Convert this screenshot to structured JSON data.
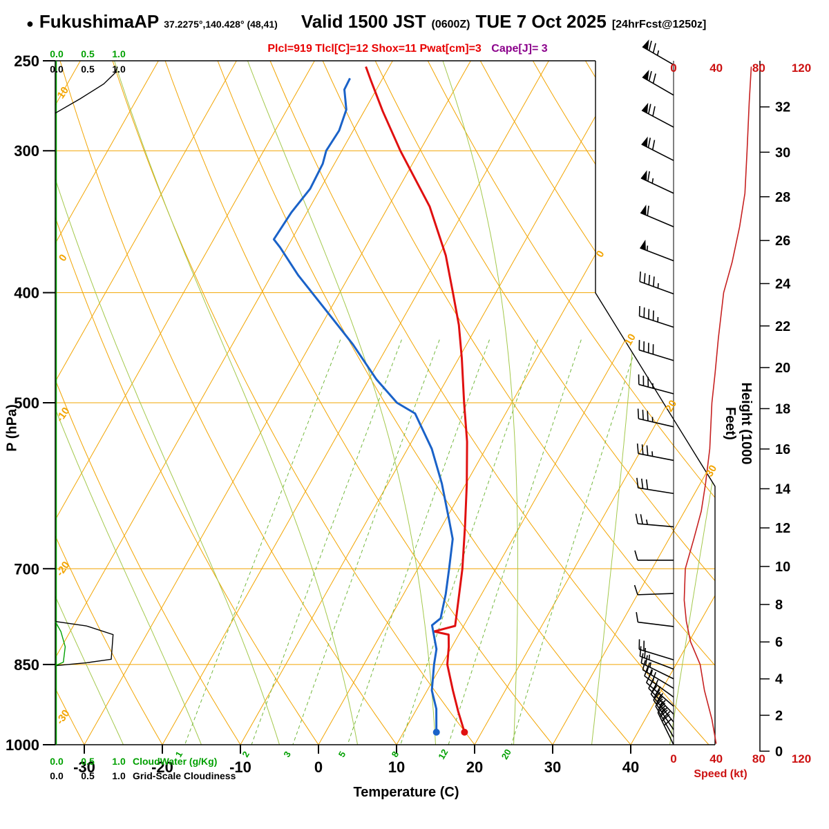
{
  "title": {
    "bullet": "●",
    "station": "FukushimaAP",
    "coords": "37.2275°,140.428° (48,41)",
    "valid": "Valid 1500 JST",
    "valid_z": "(0600Z)",
    "date": "TUE 7 Oct 2025",
    "fcst": "[24hrFcst@1250z]"
  },
  "indices": {
    "red": "Plcl=919 Tlcl[C]=12 Shox=11 Pwat[cm]=3",
    "purple": "Cape[J]= 3"
  },
  "axis": {
    "pressure": {
      "label": "P (hPa)",
      "ticks": [
        250,
        300,
        400,
        500,
        700,
        850,
        1000
      ]
    },
    "temperature": {
      "label": "Temperature (C)",
      "ticks": [
        -30,
        -20,
        -10,
        0,
        10,
        20,
        30,
        40
      ]
    },
    "height": {
      "label": "Height (1000 Feet)",
      "ticks": [
        0,
        2,
        4,
        6,
        8,
        10,
        12,
        14,
        16,
        18,
        20,
        22,
        24,
        26,
        28,
        30,
        32
      ]
    },
    "speed": {
      "label": "Speed (kt)",
      "ticks": [
        0,
        40,
        80,
        120
      ]
    }
  },
  "legend": {
    "scale_values": [
      "0.0",
      "0.5",
      "1.0"
    ],
    "cloudwater_label": "CloudWater (g/Kg)",
    "cloudiness_label": "Grid-Scale Cloudiness"
  },
  "chart_data": {
    "type": "skewt_log_p_sounding",
    "pressure_range_hpa": [
      250,
      1050
    ],
    "isotherms_c": {
      "min": -80,
      "max": 40,
      "step": 10
    },
    "pressure_gridlines_hpa": [
      300,
      400,
      500,
      700,
      850,
      1000
    ],
    "dry_adiabats_c": [
      -30,
      -20,
      -10,
      0,
      10,
      20,
      30,
      40,
      50,
      60,
      70,
      80,
      90,
      100,
      110
    ],
    "moist_adiabats_c": [
      -35,
      -25,
      -15,
      -5,
      5,
      15,
      25,
      35,
      45
    ],
    "mixing_ratio_gkg": [
      1,
      2,
      3,
      5,
      8,
      12,
      20
    ],
    "dry_adiabat_edge_labels": [
      10,
      0,
      -10,
      -20,
      -30
    ],
    "isotherm_edge_labels": [
      0,
      10,
      20,
      30
    ],
    "temperature_profile": [
      [
        975,
        17.8
      ],
      [
        935,
        15.5
      ],
      [
        896,
        13.3
      ],
      [
        850,
        10.7
      ],
      [
        820,
        9.6
      ],
      [
        800,
        8.7
      ],
      [
        795,
        6.6
      ],
      [
        786,
        8.9
      ],
      [
        766,
        8.2
      ],
      [
        700,
        5.7
      ],
      [
        641,
        2.9
      ],
      [
        589,
        0.1
      ],
      [
        541,
        -2.9
      ],
      [
        500,
        -6.1
      ],
      [
        457,
        -9.6
      ],
      [
        427,
        -12.4
      ],
      [
        400,
        -15.5
      ],
      [
        371,
        -19.1
      ],
      [
        336,
        -24.7
      ],
      [
        300,
        -32.5
      ],
      [
        277,
        -37.6
      ],
      [
        260,
        -41.4
      ],
      [
        253,
        -43.0
      ]
    ],
    "dewpoint_profile": [
      [
        975,
        14.2
      ],
      [
        930,
        12.5
      ],
      [
        896,
        10.6
      ],
      [
        850,
        9.0
      ],
      [
        824,
        8.2
      ],
      [
        785,
        5.9
      ],
      [
        774,
        6.5
      ],
      [
        737,
        5.4
      ],
      [
        700,
        4.0
      ],
      [
        659,
        2.3
      ],
      [
        632,
        0.3
      ],
      [
        589,
        -3.1
      ],
      [
        549,
        -6.9
      ],
      [
        511,
        -11.6
      ],
      [
        500,
        -14.7
      ],
      [
        477,
        -19.0
      ],
      [
        444,
        -24.6
      ],
      [
        414,
        -30.6
      ],
      [
        386,
        -36.6
      ],
      [
        365,
        -40.9
      ],
      [
        359,
        -42.3
      ],
      [
        340,
        -42.0
      ],
      [
        324,
        -41.3
      ],
      [
        308,
        -41.5
      ],
      [
        300,
        -42.0
      ],
      [
        288,
        -41.8
      ],
      [
        276,
        -42.4
      ],
      [
        265,
        -44.1
      ],
      [
        259,
        -44.2
      ]
    ],
    "wind_speed_profile_kt": [
      [
        998,
        40
      ],
      [
        950,
        36
      ],
      [
        896,
        29
      ],
      [
        850,
        25
      ],
      [
        812,
        16
      ],
      [
        779,
        12
      ],
      [
        746,
        10
      ],
      [
        700,
        11
      ],
      [
        659,
        19
      ],
      [
        623,
        26
      ],
      [
        589,
        30
      ],
      [
        549,
        34
      ],
      [
        500,
        36
      ],
      [
        471,
        39
      ],
      [
        439,
        42
      ],
      [
        400,
        47
      ],
      [
        376,
        55
      ],
      [
        350,
        62
      ],
      [
        327,
        67
      ],
      [
        300,
        69
      ],
      [
        272,
        71
      ],
      [
        253,
        73
      ]
    ],
    "wind_barbs": [
      [
        252,
        73,
        300
      ],
      [
        268,
        71,
        300
      ],
      [
        286,
        70,
        298
      ],
      [
        306,
        68,
        297
      ],
      [
        327,
        66,
        295
      ],
      [
        350,
        62,
        293
      ],
      [
        375,
        57,
        291
      ],
      [
        401,
        47,
        290
      ],
      [
        429,
        44,
        288
      ],
      [
        459,
        41,
        287
      ],
      [
        491,
        37,
        285
      ],
      [
        525,
        35,
        283
      ],
      [
        562,
        34,
        281
      ],
      [
        601,
        31,
        279
      ],
      [
        643,
        27,
        275
      ],
      [
        688,
        12,
        270
      ],
      [
        736,
        10,
        268
      ],
      [
        787,
        12,
        277
      ],
      [
        842,
        22,
        287
      ],
      [
        858,
        24,
        291
      ],
      [
        875,
        26,
        296
      ],
      [
        892,
        27,
        301
      ],
      [
        908,
        29,
        306
      ],
      [
        925,
        31,
        311
      ],
      [
        940,
        33,
        316
      ],
      [
        955,
        34,
        321
      ],
      [
        970,
        36,
        326
      ],
      [
        985,
        38,
        330
      ],
      [
        1000,
        39,
        334
      ]
    ],
    "cloudiness_upper": [
      [
        278,
        0
      ],
      [
        270,
        0.4
      ],
      [
        262,
        0.78
      ],
      [
        256,
        0.97
      ],
      [
        253,
        1.0
      ]
    ],
    "cloudiness_lower": [
      [
        852,
        0
      ],
      [
        847,
        0.5
      ],
      [
        841,
        0.9
      ],
      [
        800,
        0.93
      ],
      [
        786,
        0.5
      ],
      [
        779,
        0
      ]
    ],
    "cloudwater_lower": [
      [
        852,
        0
      ],
      [
        846,
        0.13
      ],
      [
        820,
        0.16
      ],
      [
        795,
        0.09
      ],
      [
        779,
        0
      ]
    ]
  },
  "colors": {
    "isotherm": "#f2a400",
    "moist_adiabat": "#a3c84b",
    "mixing_line": "#74b83e",
    "mixing_label": "#00a000",
    "temperature": "#e01010",
    "dewpoint": "#1a62c8",
    "speed_curve": "#c62020",
    "speed_axis": "#cc1111",
    "cloudwater": "#00a000",
    "cloudiness": "#000000",
    "border": "#000000"
  }
}
